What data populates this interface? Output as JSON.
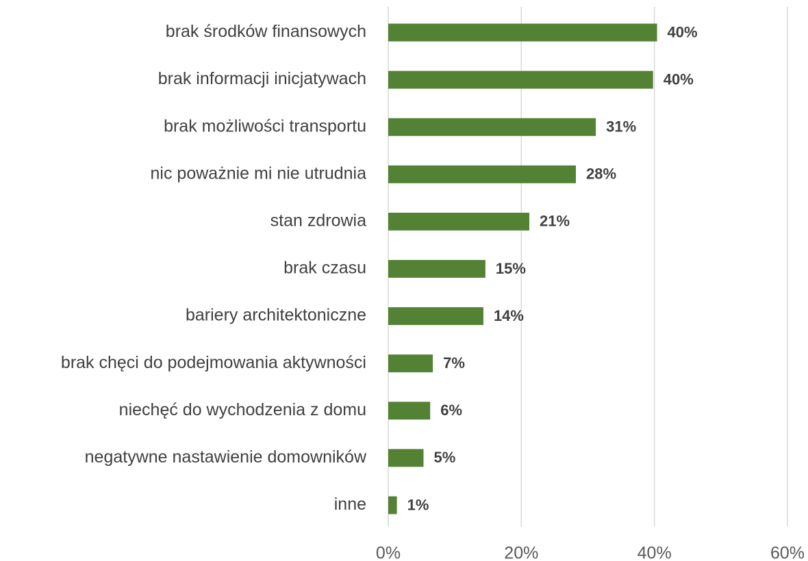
{
  "chart_data": {
    "type": "bar",
    "orientation": "horizontal",
    "categories": [
      "brak środków finansowych",
      "brak informacji inicjatywach",
      "brak możliwości transportu",
      "nic poważnie mi nie utrudnia",
      "stan zdrowia",
      "brak czasu",
      "bariery architektoniczne",
      "brak chęci do podejmowania aktywności",
      "niechęć do wychodzenia z domu",
      "negatywne nastawienie domowników",
      "inne"
    ],
    "values": [
      40.4,
      39.8,
      31.2,
      28.2,
      21.2,
      14.6,
      14.3,
      6.7,
      6.3,
      5.3,
      1.3
    ],
    "value_labels": [
      "40%",
      "40%",
      "31%",
      "28%",
      "21%",
      "15%",
      "14%",
      "7%",
      "6%",
      "5%",
      "1%"
    ],
    "color": "#548235",
    "xlim": [
      0,
      60
    ],
    "xticks": [
      {
        "value": 0,
        "label": "0%"
      },
      {
        "value": 20,
        "label": "20%"
      },
      {
        "value": 40,
        "label": "40%"
      },
      {
        "value": 60,
        "label": "60%"
      }
    ],
    "grid": true
  }
}
